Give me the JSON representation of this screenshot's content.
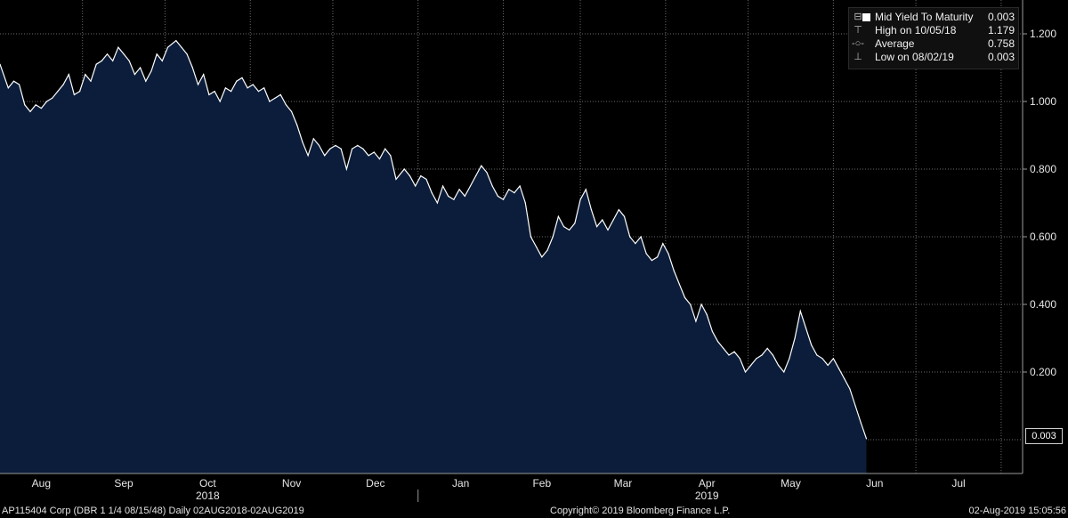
{
  "legend": {
    "series_label": "Mid Yield To Maturity",
    "series_value": "0.003",
    "high_label": "High on 10/05/18",
    "high_value": "1.179",
    "average_label": "Average",
    "average_value": "0.758",
    "low_label": "Low on 08/02/19",
    "low_value": "0.003"
  },
  "last_value_badge": "0.003",
  "footer": {
    "left": "AP115404 Corp (DBR 1 1/4 08/15/48)  Daily 02AUG2018-02AUG2019",
    "center": "Copyright© 2019 Bloomberg Finance L.P.",
    "right": "02-Aug-2019 15:05:56"
  },
  "colors": {
    "background": "#000000",
    "area_fill": "#0b1d3a",
    "line": "#ffffff",
    "grid": "#6a6a6a"
  },
  "chart_data": {
    "type": "area",
    "title": "",
    "xlabel": "",
    "ylabel": "",
    "ylim": [
      -0.1,
      1.3
    ],
    "y_ticks": [
      "0.200",
      "0.400",
      "0.600",
      "0.800",
      "1.000",
      "1.200"
    ],
    "x_ticks": [
      "Aug",
      "Sep",
      "Oct",
      "Nov",
      "Dec",
      "Jan",
      "Feb",
      "Mar",
      "Apr",
      "May",
      "Jun",
      "Jul"
    ],
    "year_labels": [
      {
        "label": "2018",
        "month": "Oct"
      },
      {
        "label": "2019",
        "month": "Apr"
      }
    ],
    "grid": true,
    "legend_position": "top-right",
    "date_range": [
      "2018-08-02",
      "2019-08-02"
    ],
    "series": [
      {
        "name": "Mid Yield To Maturity",
        "points": [
          [
            "2018-08-02",
            1.11
          ],
          [
            "2018-08-05",
            1.04
          ],
          [
            "2018-08-07",
            1.06
          ],
          [
            "2018-08-09",
            1.05
          ],
          [
            "2018-08-11",
            0.99
          ],
          [
            "2018-08-13",
            0.97
          ],
          [
            "2018-08-15",
            0.99
          ],
          [
            "2018-08-17",
            0.98
          ],
          [
            "2018-08-19",
            1.0
          ],
          [
            "2018-08-21",
            1.01
          ],
          [
            "2018-08-23",
            1.03
          ],
          [
            "2018-08-25",
            1.05
          ],
          [
            "2018-08-27",
            1.08
          ],
          [
            "2018-08-29",
            1.02
          ],
          [
            "2018-08-31",
            1.03
          ],
          [
            "2018-09-02",
            1.08
          ],
          [
            "2018-09-04",
            1.06
          ],
          [
            "2018-09-06",
            1.11
          ],
          [
            "2018-09-08",
            1.12
          ],
          [
            "2018-09-10",
            1.14
          ],
          [
            "2018-09-12",
            1.12
          ],
          [
            "2018-09-14",
            1.16
          ],
          [
            "2018-09-16",
            1.14
          ],
          [
            "2018-09-18",
            1.12
          ],
          [
            "2018-09-20",
            1.08
          ],
          [
            "2018-09-22",
            1.1
          ],
          [
            "2018-09-24",
            1.06
          ],
          [
            "2018-09-26",
            1.09
          ],
          [
            "2018-09-28",
            1.14
          ],
          [
            "2018-09-30",
            1.12
          ],
          [
            "2018-10-02",
            1.16
          ],
          [
            "2018-10-05",
            1.18
          ],
          [
            "2018-10-07",
            1.16
          ],
          [
            "2018-10-09",
            1.14
          ],
          [
            "2018-10-11",
            1.1
          ],
          [
            "2018-10-13",
            1.05
          ],
          [
            "2018-10-15",
            1.08
          ],
          [
            "2018-10-17",
            1.02
          ],
          [
            "2018-10-19",
            1.03
          ],
          [
            "2018-10-21",
            1.0
          ],
          [
            "2018-10-23",
            1.04
          ],
          [
            "2018-10-25",
            1.03
          ],
          [
            "2018-10-27",
            1.06
          ],
          [
            "2018-10-29",
            1.07
          ],
          [
            "2018-10-31",
            1.04
          ],
          [
            "2018-11-02",
            1.05
          ],
          [
            "2018-11-04",
            1.03
          ],
          [
            "2018-11-06",
            1.04
          ],
          [
            "2018-11-08",
            1.0
          ],
          [
            "2018-11-10",
            1.01
          ],
          [
            "2018-11-12",
            1.02
          ],
          [
            "2018-11-14",
            0.99
          ],
          [
            "2018-11-16",
            0.97
          ],
          [
            "2018-11-18",
            0.93
          ],
          [
            "2018-11-20",
            0.88
          ],
          [
            "2018-11-22",
            0.84
          ],
          [
            "2018-11-24",
            0.89
          ],
          [
            "2018-11-26",
            0.87
          ],
          [
            "2018-11-28",
            0.84
          ],
          [
            "2018-11-30",
            0.86
          ],
          [
            "2018-12-02",
            0.87
          ],
          [
            "2018-12-04",
            0.86
          ],
          [
            "2018-12-06",
            0.8
          ],
          [
            "2018-12-08",
            0.86
          ],
          [
            "2018-12-10",
            0.87
          ],
          [
            "2018-12-12",
            0.86
          ],
          [
            "2018-12-14",
            0.84
          ],
          [
            "2018-12-16",
            0.85
          ],
          [
            "2018-12-18",
            0.83
          ],
          [
            "2018-12-20",
            0.86
          ],
          [
            "2018-12-22",
            0.84
          ],
          [
            "2018-12-24",
            0.77
          ],
          [
            "2018-12-27",
            0.8
          ],
          [
            "2018-12-29",
            0.78
          ],
          [
            "2018-12-31",
            0.75
          ],
          [
            "2019-01-02",
            0.78
          ],
          [
            "2019-01-04",
            0.77
          ],
          [
            "2019-01-06",
            0.73
          ],
          [
            "2019-01-08",
            0.7
          ],
          [
            "2019-01-10",
            0.75
          ],
          [
            "2019-01-12",
            0.72
          ],
          [
            "2019-01-14",
            0.71
          ],
          [
            "2019-01-16",
            0.74
          ],
          [
            "2019-01-18",
            0.72
          ],
          [
            "2019-01-20",
            0.75
          ],
          [
            "2019-01-22",
            0.78
          ],
          [
            "2019-01-24",
            0.81
          ],
          [
            "2019-01-26",
            0.79
          ],
          [
            "2019-01-28",
            0.75
          ],
          [
            "2019-01-30",
            0.72
          ],
          [
            "2019-02-01",
            0.71
          ],
          [
            "2019-02-03",
            0.74
          ],
          [
            "2019-02-05",
            0.73
          ],
          [
            "2019-02-07",
            0.75
          ],
          [
            "2019-02-09",
            0.7
          ],
          [
            "2019-02-11",
            0.6
          ],
          [
            "2019-02-13",
            0.57
          ],
          [
            "2019-02-15",
            0.54
          ],
          [
            "2019-02-17",
            0.56
          ],
          [
            "2019-02-19",
            0.6
          ],
          [
            "2019-02-21",
            0.66
          ],
          [
            "2019-02-23",
            0.63
          ],
          [
            "2019-02-25",
            0.62
          ],
          [
            "2019-02-27",
            0.64
          ],
          [
            "2019-03-01",
            0.71
          ],
          [
            "2019-03-03",
            0.74
          ],
          [
            "2019-03-05",
            0.68
          ],
          [
            "2019-03-07",
            0.63
          ],
          [
            "2019-03-09",
            0.65
          ],
          [
            "2019-03-11",
            0.62
          ],
          [
            "2019-03-13",
            0.65
          ],
          [
            "2019-03-15",
            0.68
          ],
          [
            "2019-03-17",
            0.66
          ],
          [
            "2019-03-19",
            0.6
          ],
          [
            "2019-03-21",
            0.58
          ],
          [
            "2019-03-23",
            0.6
          ],
          [
            "2019-03-25",
            0.55
          ],
          [
            "2019-03-27",
            0.53
          ],
          [
            "2019-03-29",
            0.54
          ],
          [
            "2019-03-31",
            0.58
          ],
          [
            "2019-04-02",
            0.55
          ],
          [
            "2019-04-04",
            0.5
          ],
          [
            "2019-04-06",
            0.46
          ],
          [
            "2019-04-08",
            0.42
          ],
          [
            "2019-04-10",
            0.4
          ],
          [
            "2019-04-12",
            0.35
          ],
          [
            "2019-04-14",
            0.4
          ],
          [
            "2019-04-16",
            0.37
          ],
          [
            "2019-04-18",
            0.32
          ],
          [
            "2019-04-20",
            0.29
          ],
          [
            "2019-04-22",
            0.27
          ],
          [
            "2019-04-24",
            0.25
          ],
          [
            "2019-04-26",
            0.26
          ],
          [
            "2019-04-28",
            0.24
          ],
          [
            "2019-04-30",
            0.2
          ],
          [
            "2019-05-02",
            0.22
          ],
          [
            "2019-05-04",
            0.24
          ],
          [
            "2019-05-06",
            0.25
          ],
          [
            "2019-05-08",
            0.27
          ],
          [
            "2019-05-10",
            0.25
          ],
          [
            "2019-05-12",
            0.22
          ],
          [
            "2019-05-14",
            0.2
          ],
          [
            "2019-05-16",
            0.24
          ],
          [
            "2019-05-18",
            0.3
          ],
          [
            "2019-05-20",
            0.38
          ],
          [
            "2019-05-22",
            0.33
          ],
          [
            "2019-05-24",
            0.28
          ],
          [
            "2019-05-26",
            0.25
          ],
          [
            "2019-05-28",
            0.24
          ],
          [
            "2019-05-30",
            0.22
          ],
          [
            "2019-06-01",
            0.24
          ],
          [
            "2019-06-03",
            0.21
          ],
          [
            "2019-06-05",
            0.18
          ],
          [
            "2019-06-07",
            0.15
          ],
          [
            "2019-06-09",
            0.1
          ],
          [
            "2019-06-11",
            0.05
          ],
          [
            "2019-06-13",
            0.003
          ]
        ]
      }
    ]
  }
}
